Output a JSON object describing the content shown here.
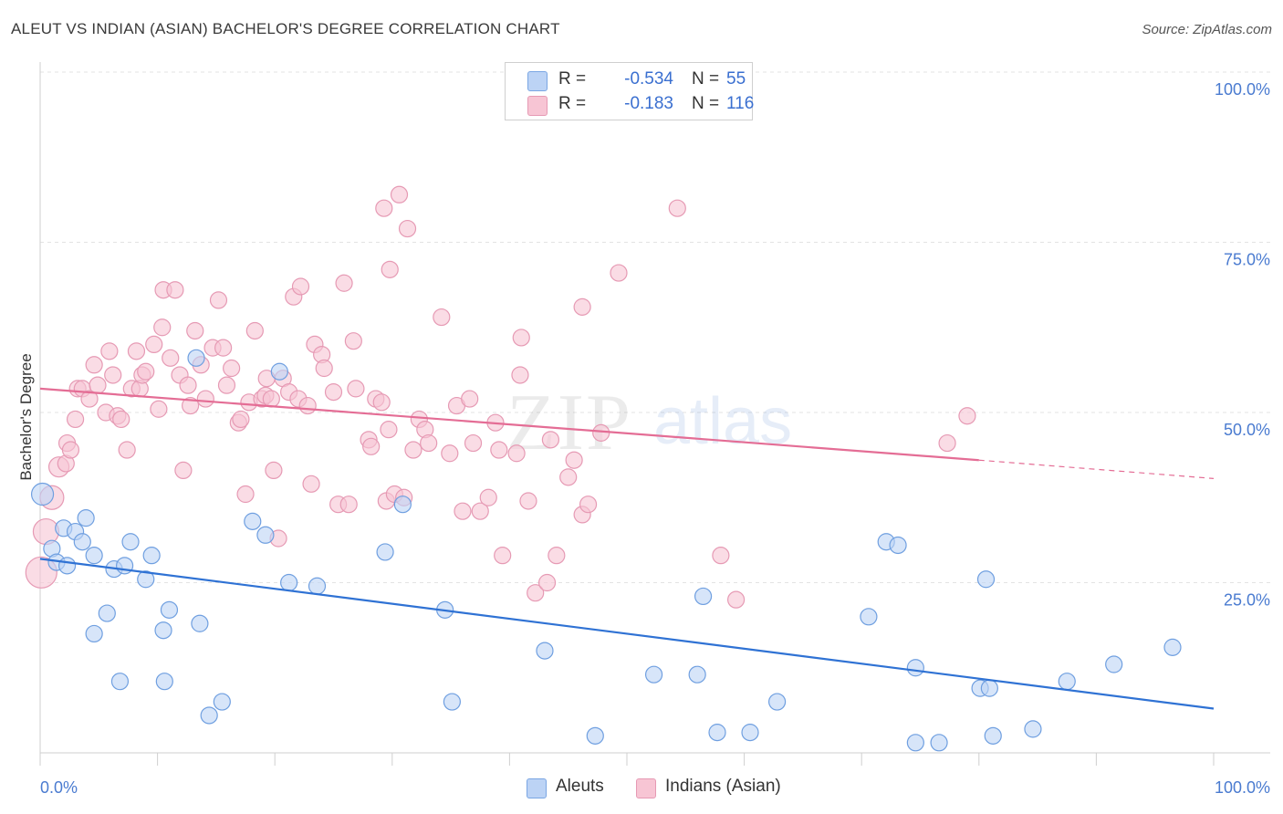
{
  "header": {
    "title": "ALEUT VS INDIAN (ASIAN) BACHELOR'S DEGREE CORRELATION CHART",
    "source": "Source: ZipAtlas.com"
  },
  "legend_top": [
    {
      "r_label": "R =",
      "r_value": "-0.534",
      "n_label": "N =",
      "n_value": "55"
    },
    {
      "r_label": "R =",
      "r_value": "-0.183",
      "n_label": "N =",
      "n_value": "116"
    }
  ],
  "legend_bottom": [
    "Aleuts",
    "Indians (Asian)"
  ],
  "watermark": {
    "zip": "ZIP",
    "atlas": "atlas"
  },
  "colors": {
    "blue_fill": "#bcd3f5",
    "blue_stroke": "#6f9fe0",
    "blue_line": "#2f72d4",
    "pink_fill": "#f7c5d4",
    "pink_stroke": "#e69ab4",
    "pink_line": "#e46d95",
    "tick_text": "#4a7bd0",
    "grid": "#e3e3e3"
  },
  "chart_data": {
    "type": "scatter",
    "xlabel": "",
    "ylabel": "Bachelor's Degree",
    "xlim": [
      0,
      100
    ],
    "ylim": [
      0,
      100
    ],
    "x_tick_labels": [
      "0.0%",
      "100.0%"
    ],
    "y_ticks": [
      25,
      50,
      75,
      100
    ],
    "y_tick_labels": [
      "25.0%",
      "50.0%",
      "75.0%",
      "100.0%"
    ],
    "grid": true,
    "legend_position": "top-center",
    "series": [
      {
        "name": "Aleuts",
        "color": "#6f9fe0",
        "r": -0.534,
        "n": 55,
        "trend": {
          "x0": 0,
          "y0": 28.5,
          "x1": 100,
          "y1": 6.5
        },
        "points": [
          [
            0.2,
            38.0
          ],
          [
            1.0,
            30.0
          ],
          [
            1.4,
            28.0
          ],
          [
            2.0,
            33.0
          ],
          [
            2.3,
            27.5
          ],
          [
            3.0,
            32.5
          ],
          [
            3.6,
            31.0
          ],
          [
            3.9,
            34.5
          ],
          [
            4.6,
            29.0
          ],
          [
            4.6,
            17.5
          ],
          [
            5.7,
            20.5
          ],
          [
            6.3,
            27.0
          ],
          [
            7.2,
            27.5
          ],
          [
            7.7,
            31.0
          ],
          [
            6.8,
            10.5
          ],
          [
            9.0,
            25.5
          ],
          [
            9.5,
            29.0
          ],
          [
            10.5,
            18.0
          ],
          [
            10.6,
            10.5
          ],
          [
            11.0,
            21.0
          ],
          [
            13.3,
            58.0
          ],
          [
            13.6,
            19.0
          ],
          [
            14.4,
            5.5
          ],
          [
            15.5,
            7.5
          ],
          [
            18.1,
            34.0
          ],
          [
            19.2,
            32.0
          ],
          [
            20.4,
            56.0
          ],
          [
            21.2,
            25.0
          ],
          [
            23.6,
            24.5
          ],
          [
            29.4,
            29.5
          ],
          [
            30.9,
            36.5
          ],
          [
            34.5,
            21.0
          ],
          [
            35.1,
            7.5
          ],
          [
            43.0,
            15.0
          ],
          [
            47.3,
            2.5
          ],
          [
            52.3,
            11.5
          ],
          [
            56.5,
            23.0
          ],
          [
            56.0,
            11.5
          ],
          [
            57.7,
            3.0
          ],
          [
            60.5,
            3.0
          ],
          [
            62.8,
            7.5
          ],
          [
            70.6,
            20.0
          ],
          [
            72.1,
            31.0
          ],
          [
            73.1,
            30.5
          ],
          [
            74.6,
            1.5
          ],
          [
            74.6,
            12.5
          ],
          [
            76.6,
            1.5
          ],
          [
            80.1,
            9.5
          ],
          [
            80.6,
            25.5
          ],
          [
            80.9,
            9.5
          ],
          [
            81.2,
            2.5
          ],
          [
            84.6,
            3.5
          ],
          [
            87.5,
            10.5
          ],
          [
            91.5,
            13.0
          ],
          [
            96.5,
            15.5
          ]
        ]
      },
      {
        "name": "Indians (Asian)",
        "color": "#e69ab4",
        "r": -0.183,
        "n": 116,
        "trend": {
          "x0": 0,
          "y0": 53.5,
          "x1": 80,
          "y1": 43.0,
          "dashed_to": {
            "x": 100,
            "y": 40.3
          }
        },
        "points": [
          [
            0.1,
            26.5
          ],
          [
            0.5,
            32.5
          ],
          [
            1.0,
            37.5
          ],
          [
            1.6,
            42.0
          ],
          [
            2.2,
            42.5
          ],
          [
            2.3,
            45.5
          ],
          [
            2.6,
            44.5
          ],
          [
            3.0,
            49.0
          ],
          [
            3.2,
            53.5
          ],
          [
            3.6,
            53.5
          ],
          [
            4.2,
            52.0
          ],
          [
            4.6,
            57.0
          ],
          [
            4.9,
            54.0
          ],
          [
            5.6,
            50.0
          ],
          [
            5.9,
            59.0
          ],
          [
            6.2,
            55.5
          ],
          [
            6.6,
            49.5
          ],
          [
            6.9,
            49.0
          ],
          [
            7.4,
            44.5
          ],
          [
            7.8,
            53.5
          ],
          [
            8.2,
            59.0
          ],
          [
            8.5,
            53.5
          ],
          [
            8.7,
            55.5
          ],
          [
            9.0,
            56.0
          ],
          [
            9.7,
            60.0
          ],
          [
            10.1,
            50.5
          ],
          [
            10.4,
            62.5
          ],
          [
            10.5,
            68.0
          ],
          [
            11.1,
            58.0
          ],
          [
            11.5,
            68.0
          ],
          [
            11.9,
            55.5
          ],
          [
            12.2,
            41.5
          ],
          [
            12.6,
            54.0
          ],
          [
            12.8,
            51.0
          ],
          [
            13.2,
            62.0
          ],
          [
            13.7,
            57.0
          ],
          [
            14.1,
            52.0
          ],
          [
            14.7,
            59.5
          ],
          [
            15.2,
            66.5
          ],
          [
            15.6,
            59.5
          ],
          [
            15.9,
            54.0
          ],
          [
            16.3,
            56.5
          ],
          [
            16.9,
            48.5
          ],
          [
            17.1,
            49.0
          ],
          [
            17.5,
            38.0
          ],
          [
            17.8,
            51.5
          ],
          [
            18.3,
            62.0
          ],
          [
            18.9,
            52.0
          ],
          [
            19.2,
            52.5
          ],
          [
            19.3,
            55.0
          ],
          [
            19.7,
            52.0
          ],
          [
            19.9,
            41.5
          ],
          [
            20.3,
            31.5
          ],
          [
            20.7,
            55.0
          ],
          [
            21.2,
            53.0
          ],
          [
            21.6,
            67.0
          ],
          [
            22.0,
            52.0
          ],
          [
            22.2,
            68.5
          ],
          [
            22.8,
            51.0
          ],
          [
            23.1,
            39.5
          ],
          [
            23.4,
            60.0
          ],
          [
            24.0,
            58.5
          ],
          [
            24.2,
            56.5
          ],
          [
            25.0,
            53.0
          ],
          [
            25.4,
            36.5
          ],
          [
            25.9,
            69.0
          ],
          [
            26.3,
            36.5
          ],
          [
            26.7,
            60.5
          ],
          [
            26.9,
            53.5
          ],
          [
            28.0,
            46.0
          ],
          [
            28.2,
            45.0
          ],
          [
            28.6,
            52.0
          ],
          [
            29.1,
            51.5
          ],
          [
            29.5,
            37.0
          ],
          [
            29.7,
            47.5
          ],
          [
            30.2,
            38.0
          ],
          [
            29.3,
            80.0
          ],
          [
            29.8,
            71.0
          ],
          [
            30.6,
            82.0
          ],
          [
            31.0,
            37.5
          ],
          [
            31.3,
            77.0
          ],
          [
            31.8,
            44.5
          ],
          [
            32.3,
            49.0
          ],
          [
            32.8,
            47.5
          ],
          [
            33.1,
            45.5
          ],
          [
            34.2,
            64.0
          ],
          [
            34.9,
            44.0
          ],
          [
            35.5,
            51.0
          ],
          [
            36.0,
            35.5
          ],
          [
            36.6,
            52.0
          ],
          [
            36.9,
            45.5
          ],
          [
            37.5,
            35.5
          ],
          [
            38.2,
            37.5
          ],
          [
            38.8,
            48.5
          ],
          [
            39.1,
            44.5
          ],
          [
            39.4,
            29.0
          ],
          [
            40.6,
            44.0
          ],
          [
            40.9,
            55.5
          ],
          [
            41.0,
            61.0
          ],
          [
            41.6,
            37.0
          ],
          [
            42.2,
            23.5
          ],
          [
            43.2,
            25.0
          ],
          [
            43.5,
            46.0
          ],
          [
            44.0,
            29.0
          ],
          [
            45.0,
            40.5
          ],
          [
            45.5,
            43.0
          ],
          [
            46.2,
            35.0
          ],
          [
            46.7,
            36.5
          ],
          [
            46.2,
            65.5
          ],
          [
            47.8,
            47.0
          ],
          [
            49.3,
            70.5
          ],
          [
            54.3,
            80.0
          ],
          [
            58.0,
            29.0
          ],
          [
            59.3,
            22.5
          ],
          [
            79.0,
            49.5
          ],
          [
            77.3,
            45.5
          ]
        ]
      }
    ]
  }
}
